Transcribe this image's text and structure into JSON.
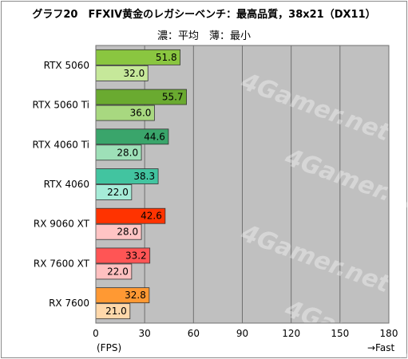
{
  "title": "グラフ20　FFXIV黄金のレガシーベンチ：最高品質，38x21（DX11）",
  "subtitle": "濃：平均　薄：最小",
  "unit_label": "(FPS)",
  "direction_label": "→Fast",
  "watermark": "4Gamer.net",
  "chart_data": {
    "type": "bar",
    "orientation": "horizontal",
    "categories": [
      "RTX 5060",
      "RTX 5060 Ti",
      "RTX 4060 Ti",
      "RTX 4060",
      "RX 9060 XT",
      "RX 7600 XT",
      "RX 7600"
    ],
    "series": [
      {
        "values": [
          51.8,
          55.7,
          44.6,
          38.3,
          42.6,
          33.2,
          32.8
        ],
        "colors": [
          "#8ac640",
          "#6aaa30",
          "#3aa56b",
          "#42c4a0",
          "#ff3300",
          "#ff5555",
          "#ff9933"
        ]
      },
      {
        "values": [
          32.0,
          36.0,
          28.0,
          22.0,
          28.0,
          22.0,
          21.0
        ],
        "colors": [
          "#c6e89a",
          "#a8d880",
          "#9ee0b8",
          "#a6ecd8",
          "#ffc4c4",
          "#ffc0c0",
          "#ffd8aa"
        ]
      }
    ],
    "xlim": [
      0,
      180
    ],
    "xticks": [
      0,
      30,
      60,
      90,
      120,
      150,
      180
    ],
    "grid": true,
    "plot_background": "#c0c0c0"
  }
}
